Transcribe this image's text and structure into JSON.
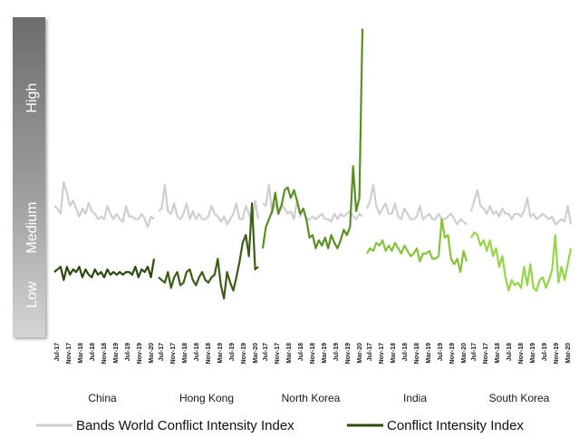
{
  "chart_data": {
    "type": "line",
    "band_labels": [
      "High",
      "Medium",
      "Low"
    ],
    "x_tick_labels": [
      "Jul-17",
      "Nov-17",
      "Mar-18",
      "Jul-18",
      "Nov-18",
      "Mar-19",
      "Jul-19",
      "Nov-19",
      "Mar-20"
    ],
    "months_per_group": 33,
    "groups": [
      {
        "name": "China",
        "color": "#2d4a12",
        "conflict": [
          1.2,
          1.25,
          1.3,
          1.05,
          1.3,
          1.15,
          1.25,
          1.2,
          1.3,
          1.1,
          1.25,
          1.15,
          1.1,
          1.25,
          1.15,
          1.2,
          1.1,
          1.25,
          1.15,
          1.2,
          1.15,
          1.2,
          1.15,
          1.2,
          1.2,
          1.15,
          1.3,
          1.1,
          1.25,
          1.2,
          1.3,
          1.1,
          1.45
        ],
        "bands": [
          2.45,
          2.4,
          2.3,
          2.9,
          2.7,
          2.45,
          2.55,
          2.4,
          2.25,
          2.4,
          2.3,
          2.5,
          2.35,
          2.3,
          2.2,
          2.25,
          2.2,
          2.45,
          2.3,
          2.2,
          2.3,
          2.2,
          2.15,
          2.45,
          2.25,
          2.25,
          2.2,
          2.2,
          2.3,
          2.2,
          2.05,
          2.25,
          2.2
        ]
      },
      {
        "name": "Hong Kong",
        "color": "#3a5e16",
        "conflict": [
          1.1,
          1.05,
          1.0,
          1.2,
          0.9,
          1.1,
          1.2,
          0.95,
          1.0,
          1.2,
          1.25,
          1.05,
          0.95,
          1.1,
          1.2,
          1.05,
          1.0,
          1.1,
          1.15,
          1.45,
          0.95,
          0.7,
          1.2,
          1.0,
          0.85,
          1.1,
          1.4,
          1.75,
          1.9,
          1.5,
          2.5,
          1.25,
          1.3
        ],
        "bands": [
          2.35,
          2.4,
          2.85,
          2.35,
          2.3,
          2.5,
          2.25,
          2.2,
          2.3,
          2.5,
          2.2,
          2.35,
          2.2,
          2.3,
          2.2,
          2.2,
          2.25,
          2.45,
          2.3,
          2.25,
          2.15,
          2.25,
          2.1,
          2.2,
          2.3,
          2.5,
          2.2,
          2.2,
          2.45,
          2.3,
          2.1,
          2.55,
          2.2
        ]
      },
      {
        "name": "North Korea",
        "color": "#5a8f24",
        "conflict": [
          1.65,
          2.05,
          2.2,
          2.35,
          2.7,
          2.3,
          2.45,
          2.75,
          2.8,
          2.6,
          2.75,
          2.55,
          2.3,
          2.4,
          2.2,
          1.85,
          1.9,
          1.65,
          1.8,
          1.7,
          1.85,
          1.65,
          1.9,
          1.75,
          1.65,
          1.8,
          2.0,
          1.9,
          2.05,
          3.2,
          2.35,
          2.6,
          5.8
        ],
        "bands": [
          2.5,
          2.45,
          2.85,
          2.3,
          2.5,
          2.3,
          2.5,
          2.4,
          2.3,
          2.35,
          2.2,
          2.55,
          2.25,
          2.4,
          2.2,
          2.2,
          2.25,
          2.2,
          2.25,
          2.3,
          2.2,
          2.2,
          2.15,
          2.3,
          2.2,
          2.3,
          2.25,
          2.3,
          2.35,
          2.25,
          2.2,
          2.3,
          2.25
        ]
      },
      {
        "name": "India",
        "color": "#86c23a",
        "conflict": [
          1.55,
          1.65,
          1.6,
          1.75,
          1.7,
          1.8,
          1.6,
          1.7,
          1.6,
          1.75,
          1.65,
          1.55,
          1.7,
          1.6,
          1.5,
          1.55,
          1.65,
          1.4,
          1.55,
          1.55,
          1.6,
          1.45,
          1.45,
          1.5,
          2.2,
          1.85,
          1.9,
          1.45,
          1.35,
          1.45,
          1.2,
          1.6,
          1.4
        ],
        "bands": [
          2.4,
          2.55,
          2.85,
          2.45,
          2.3,
          2.4,
          2.5,
          2.3,
          2.3,
          2.5,
          2.25,
          2.2,
          2.4,
          2.3,
          2.2,
          2.2,
          2.25,
          2.45,
          2.2,
          2.25,
          2.3,
          2.2,
          2.2,
          2.3,
          2.2,
          2.2,
          2.25,
          2.3,
          2.2,
          2.1,
          2.2,
          2.15,
          2.1
        ]
      },
      {
        "name": "South Korea",
        "color": "#96d44a",
        "conflict": [
          1.85,
          1.95,
          1.9,
          1.7,
          1.8,
          1.6,
          1.8,
          1.5,
          1.65,
          1.3,
          1.5,
          1.1,
          0.85,
          1.05,
          0.95,
          1.0,
          0.9,
          1.3,
          0.95,
          1.35,
          0.9,
          0.85,
          1.05,
          1.1,
          0.9,
          1.05,
          1.25,
          1.9,
          1.0,
          1.3,
          1.05,
          1.35,
          1.65
        ],
        "bands": [
          2.35,
          2.55,
          2.75,
          2.45,
          2.4,
          2.3,
          2.45,
          2.3,
          2.35,
          2.25,
          2.4,
          2.3,
          2.3,
          2.2,
          2.3,
          2.3,
          2.25,
          2.35,
          2.6,
          2.25,
          2.3,
          2.2,
          2.25,
          2.3,
          2.25,
          2.2,
          2.25,
          2.1,
          2.15,
          2.2,
          2.15,
          2.45,
          2.1
        ]
      }
    ],
    "bands_color": "#cfcfcf",
    "y_range": [
      0,
      6
    ]
  },
  "legend": {
    "bands_label": "Bands World Conflict Intensity Index",
    "conflict_label": "Conflict Intensity Index",
    "bands_color": "#cfcfcf",
    "conflict_color": "#2d4a12"
  },
  "band_panel_color": "#8c8c8c"
}
